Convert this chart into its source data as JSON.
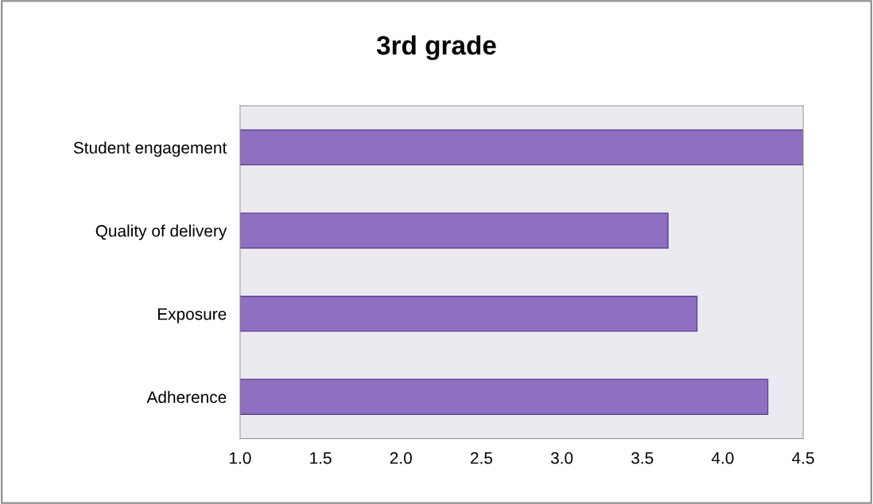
{
  "chart_data": {
    "type": "bar",
    "orientation": "horizontal",
    "title": "3rd grade",
    "categories": [
      "Student engagement",
      "Quality of delivery",
      "Exposure",
      "Adherence"
    ],
    "values": [
      4.5,
      3.66,
      3.84,
      4.28
    ],
    "color": "#8e6fc0",
    "xlim": [
      1.0,
      4.5
    ],
    "xticks": [
      {
        "value": 1.0,
        "label": "1.0"
      },
      {
        "value": 1.5,
        "label": "1.5"
      },
      {
        "value": 2.0,
        "label": "2.0"
      },
      {
        "value": 2.5,
        "label": "2.5"
      },
      {
        "value": 3.0,
        "label": "3.0"
      },
      {
        "value": 3.5,
        "label": "3.5"
      },
      {
        "value": 4.0,
        "label": "4.0"
      },
      {
        "value": 4.5,
        "label": "4.5"
      }
    ],
    "grid": false,
    "legend": false
  }
}
